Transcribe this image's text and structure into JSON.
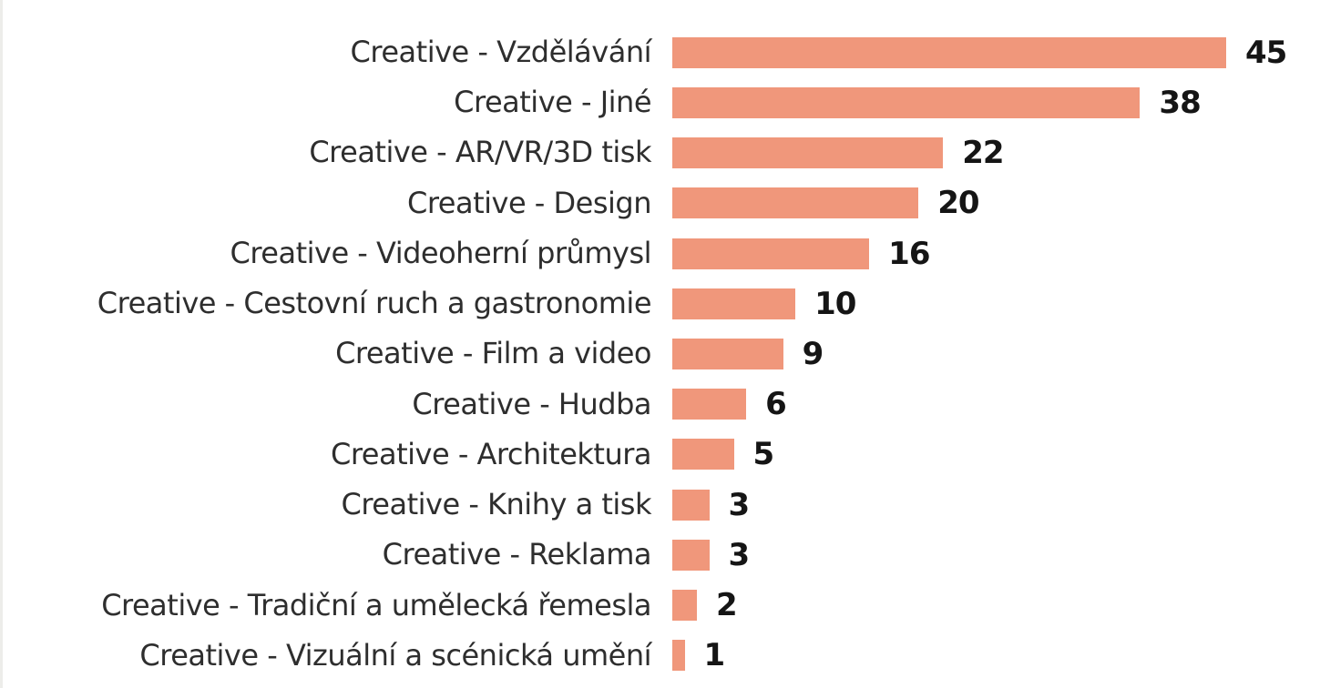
{
  "chart_data": {
    "type": "bar",
    "orientation": "horizontal",
    "title": "",
    "xlabel": "",
    "ylabel": "",
    "categories": [
      "Creative - Vzdělávání",
      "Creative - Jiné",
      "Creative - AR/VR/3D tisk",
      "Creative - Design",
      "Creative - Videoherní průmysl",
      "Creative - Cestovní ruch a gastronomie",
      "Creative - Film a video",
      "Creative - Hudba",
      "Creative - Architektura",
      "Creative - Knihy a tisk",
      "Creative - Reklama",
      "Creative - Tradiční a umělecká řemesla",
      "Creative - Vizuální a scénická umění"
    ],
    "values": [
      45,
      38,
      22,
      20,
      16,
      10,
      9,
      6,
      5,
      3,
      3,
      2,
      1
    ],
    "value_labels_shown": true,
    "xlim": [
      0,
      45
    ],
    "grid": false,
    "legend": false,
    "bar_color": "#f0977b",
    "label_color": "#2e2e2e",
    "value_label_color": "#151515",
    "background_color": "#ffffff"
  }
}
